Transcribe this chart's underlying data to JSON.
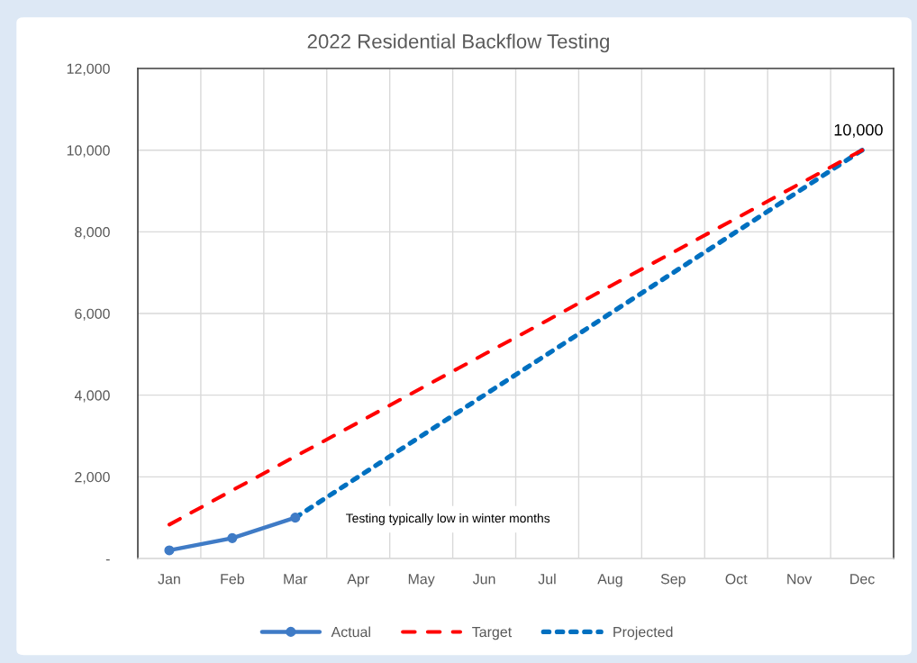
{
  "chart_data": {
    "type": "line",
    "title": "2022 Residential Backflow Testing",
    "categories": [
      "Jan",
      "Feb",
      "Mar",
      "Apr",
      "May",
      "Jun",
      "Jul",
      "Aug",
      "Sep",
      "Oct",
      "Nov",
      "Dec"
    ],
    "series": [
      {
        "name": "Actual",
        "color": "#3f7bc6",
        "line_style": "solid",
        "marker": "circle",
        "values": [
          200,
          500,
          1000,
          null,
          null,
          null,
          null,
          null,
          null,
          null,
          null,
          null
        ]
      },
      {
        "name": "Target",
        "color": "#ff0000",
        "line_style": "dashed",
        "marker": "none",
        "values": [
          830,
          1670,
          2500,
          3330,
          4170,
          5000,
          5830,
          6670,
          7500,
          8330,
          9170,
          10000
        ]
      },
      {
        "name": "Projected",
        "color": "#0070c0",
        "line_style": "dotted",
        "marker": "none",
        "values": [
          null,
          null,
          1000,
          2000,
          3000,
          4000,
          5000,
          6000,
          7000,
          8000,
          9000,
          10000
        ],
        "value_labels": [
          null,
          null,
          null,
          null,
          null,
          null,
          null,
          null,
          null,
          null,
          null,
          "10,000"
        ]
      }
    ],
    "ylim": [
      0,
      12000
    ],
    "yticks": [
      {
        "value": 0,
        "label": "-"
      },
      {
        "value": 2000,
        "label": "2,000"
      },
      {
        "value": 4000,
        "label": "4,000"
      },
      {
        "value": 6000,
        "label": "6,000"
      },
      {
        "value": 8000,
        "label": "8,000"
      },
      {
        "value": 10000,
        "label": "10,000"
      },
      {
        "value": 12000,
        "label": "12,000"
      }
    ],
    "grid": true,
    "legend": "bottom",
    "annotations": [
      "Testing typically low in winter months"
    ]
  }
}
